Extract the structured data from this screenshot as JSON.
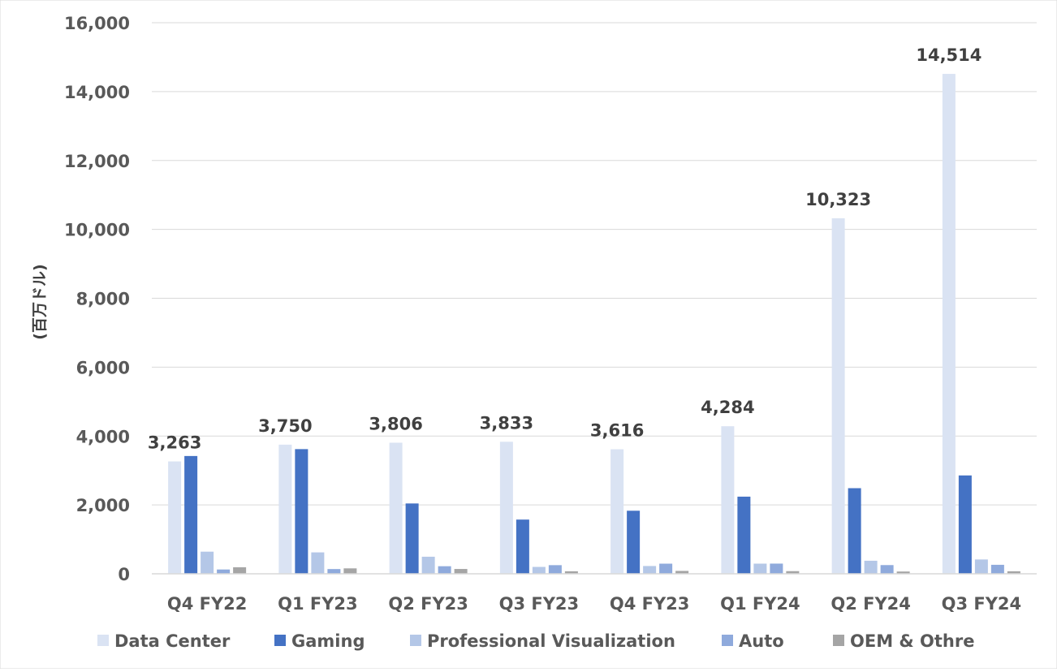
{
  "chart_data": {
    "type": "bar",
    "ylabel": "(百万ドル)",
    "xlabel": "",
    "ylim": [
      0,
      16000
    ],
    "ytick_step": 2000,
    "grid": true,
    "legend_position": "bottom",
    "categories": [
      "Q4 FY22",
      "Q1 FY23",
      "Q2 FY23",
      "Q3 FY23",
      "Q4 FY23",
      "Q1 FY24",
      "Q2 FY24",
      "Q3 FY24"
    ],
    "series": [
      {
        "name": "Data Center",
        "color": "#dae3f3",
        "labeled": true,
        "values": [
          3263,
          3750,
          3806,
          3833,
          3616,
          4284,
          10323,
          14514
        ]
      },
      {
        "name": "Gaming",
        "color": "#4472c4",
        "labeled": false,
        "values": [
          3420,
          3620,
          2042,
          1574,
          1831,
          2240,
          2486,
          2856
        ]
      },
      {
        "name": "Professional Visualization",
        "color": "#b4c7e7",
        "labeled": false,
        "values": [
          643,
          622,
          496,
          200,
          226,
          295,
          379,
          416
        ]
      },
      {
        "name": "Auto",
        "color": "#8faadc",
        "labeled": false,
        "values": [
          125,
          138,
          220,
          251,
          294,
          296,
          253,
          261
        ]
      },
      {
        "name": "OEM & Othre",
        "color": "#a5a5a5",
        "labeled": false,
        "values": [
          190,
          158,
          140,
          73,
          84,
          77,
          66,
          73
        ]
      }
    ],
    "data_labels": [
      "3,263",
      "3,750",
      "3,806",
      "3,833",
      "3,616",
      "4,284",
      "10,323",
      "14,514"
    ],
    "ytick_labels": [
      "0",
      "2,000",
      "4,000",
      "6,000",
      "8,000",
      "10,000",
      "12,000",
      "14,000",
      "16,000"
    ]
  }
}
